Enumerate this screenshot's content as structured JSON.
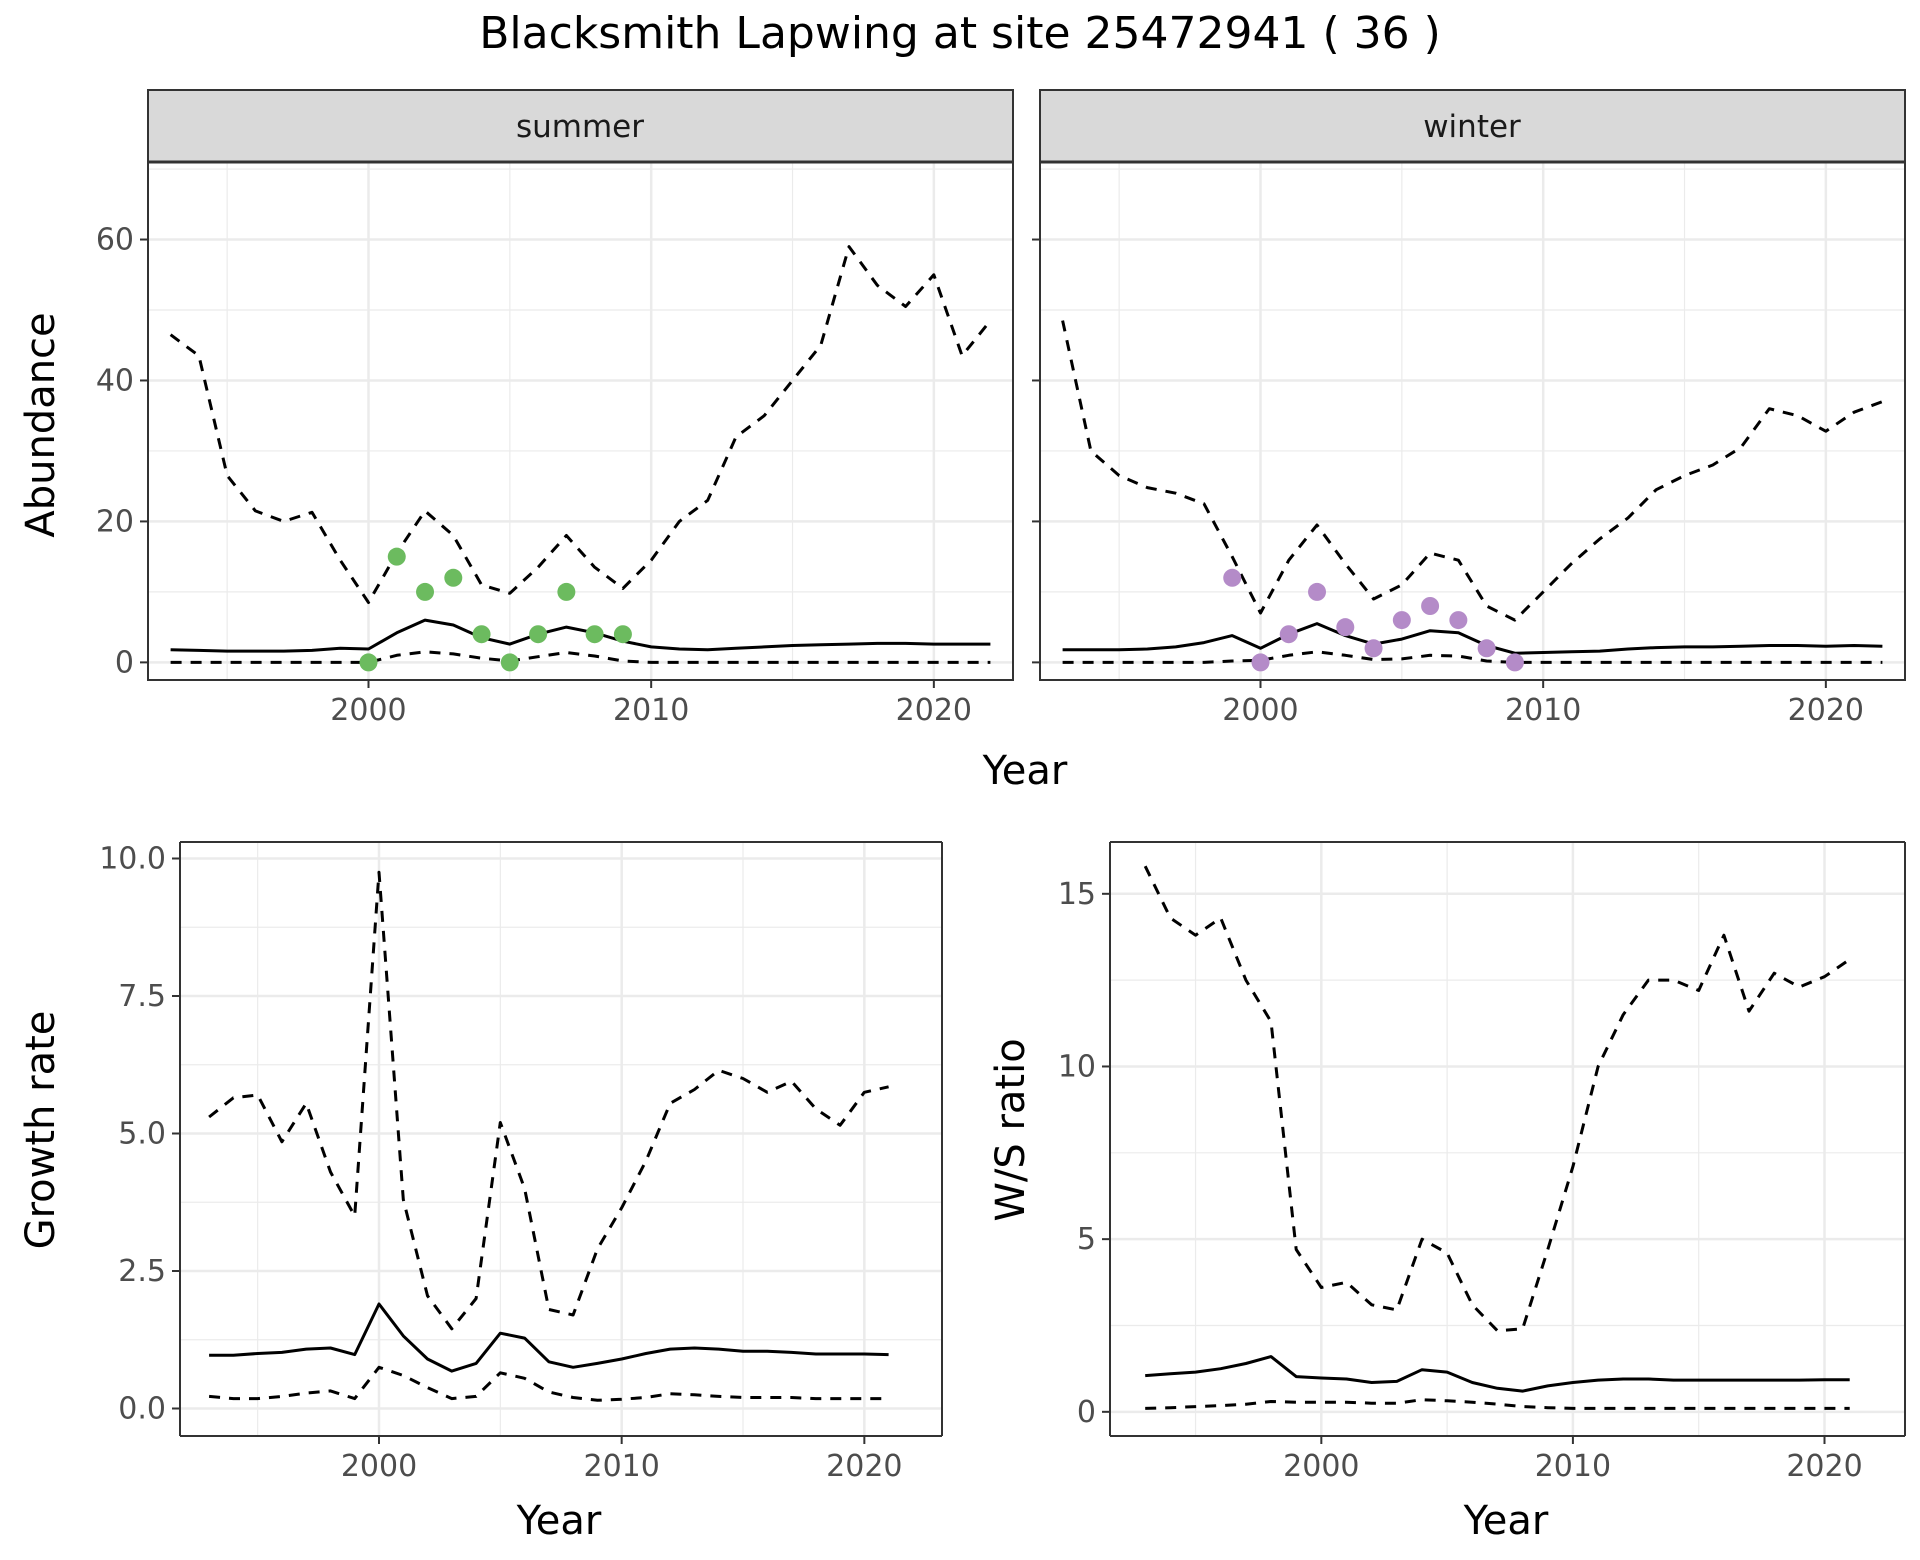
{
  "title": "Blacksmith Lapwing at site 25472941 ( 36 )",
  "colors": {
    "summer_points": "#6cbb5f",
    "winter_points": "#b48bc8",
    "strip_fill": "#d9d9d9",
    "strip_border": "#333333",
    "grid": "#ebebeb",
    "line": "#000000"
  },
  "chart_data": [
    {
      "type": "line",
      "facet": "summer",
      "strip_label": "summer",
      "xlabel": "Year",
      "ylabel": "Abundance",
      "xlim": [
        1992.2,
        2022.8
      ],
      "ylim": [
        -2.5,
        71
      ],
      "x_ticks": [
        2000,
        2010,
        2020
      ],
      "y_ticks": [
        0,
        20,
        40,
        60
      ],
      "grid": true,
      "series": [
        {
          "role": "mean",
          "style": "solid",
          "x": [
            1993,
            1994,
            1995,
            1996,
            1997,
            1998,
            1999,
            2000,
            2001,
            2002,
            2003,
            2004,
            2005,
            2006,
            2007,
            2008,
            2009,
            2010,
            2011,
            2012,
            2013,
            2014,
            2015,
            2016,
            2017,
            2018,
            2019,
            2020,
            2021,
            2022
          ],
          "y": [
            1.8,
            1.7,
            1.6,
            1.6,
            1.6,
            1.7,
            2.0,
            1.9,
            4.2,
            6.0,
            5.3,
            3.5,
            2.6,
            4.0,
            5.0,
            4.2,
            3.0,
            2.2,
            1.9,
            1.8,
            2.0,
            2.2,
            2.4,
            2.5,
            2.6,
            2.7,
            2.7,
            2.6,
            2.6,
            2.6
          ]
        },
        {
          "role": "upper",
          "style": "dashed",
          "x": [
            1993,
            1994,
            1995,
            1996,
            1997,
            1998,
            1999,
            2000,
            2001,
            2002,
            2003,
            2004,
            2005,
            2006,
            2007,
            2008,
            2009,
            2010,
            2011,
            2012,
            2013,
            2014,
            2015,
            2016,
            2017,
            2018,
            2019,
            2020,
            2021,
            2022
          ],
          "y": [
            46.5,
            43.5,
            26.5,
            21.5,
            20.0,
            21.3,
            14.5,
            8.5,
            15.5,
            21.5,
            18.0,
            11.0,
            9.8,
            13.5,
            18.0,
            13.5,
            10.5,
            14.5,
            20.0,
            23.0,
            32.0,
            35.0,
            40.0,
            45.0,
            59.0,
            53.5,
            50.5,
            55.0,
            43.5,
            48.5
          ]
        },
        {
          "role": "lower",
          "style": "dashed",
          "x": [
            1993,
            1994,
            1995,
            1996,
            1997,
            1998,
            1999,
            2000,
            2001,
            2002,
            2003,
            2004,
            2005,
            2006,
            2007,
            2008,
            2009,
            2010,
            2011,
            2012,
            2013,
            2014,
            2015,
            2016,
            2017,
            2018,
            2019,
            2020,
            2021,
            2022
          ],
          "y": [
            0,
            0,
            0,
            0,
            0,
            0,
            0,
            0,
            1.0,
            1.5,
            1.2,
            0.6,
            0.2,
            0.8,
            1.4,
            0.9,
            0.2,
            0,
            0,
            0,
            0,
            0,
            0,
            0,
            0,
            0,
            0,
            0,
            0,
            0
          ]
        },
        {
          "role": "observed",
          "style": "points",
          "x": [
            2000,
            2001,
            2002,
            2003,
            2004,
            2005,
            2006,
            2007,
            2008,
            2009
          ],
          "y": [
            0,
            15,
            10,
            12,
            4,
            0,
            4,
            10,
            4,
            4
          ]
        }
      ]
    },
    {
      "type": "line",
      "facet": "winter",
      "strip_label": "winter",
      "xlabel": "Year",
      "ylabel": "",
      "xlim": [
        1992.2,
        2022.8
      ],
      "ylim": [
        -2.5,
        71
      ],
      "x_ticks": [
        2000,
        2010,
        2020
      ],
      "y_ticks": [
        0,
        20,
        40,
        60
      ],
      "grid": true,
      "series": [
        {
          "role": "mean",
          "style": "solid",
          "x": [
            1993,
            1994,
            1995,
            1996,
            1997,
            1998,
            1999,
            2000,
            2001,
            2002,
            2003,
            2004,
            2005,
            2006,
            2007,
            2008,
            2009,
            2010,
            2011,
            2012,
            2013,
            2014,
            2015,
            2016,
            2017,
            2018,
            2019,
            2020,
            2021,
            2022
          ],
          "y": [
            1.8,
            1.8,
            1.8,
            1.9,
            2.2,
            2.8,
            3.8,
            2.0,
            4.0,
            5.5,
            3.8,
            2.6,
            3.3,
            4.5,
            4.2,
            2.4,
            1.3,
            1.4,
            1.5,
            1.6,
            1.9,
            2.1,
            2.2,
            2.2,
            2.3,
            2.4,
            2.4,
            2.3,
            2.4,
            2.3
          ]
        },
        {
          "role": "upper",
          "style": "dashed",
          "x": [
            1993,
            1994,
            1995,
            1996,
            1997,
            1998,
            1999,
            2000,
            2001,
            2002,
            2003,
            2004,
            2005,
            2006,
            2007,
            2008,
            2009,
            2010,
            2011,
            2012,
            2013,
            2014,
            2015,
            2016,
            2017,
            2018,
            2019,
            2020,
            2021,
            2022
          ],
          "y": [
            48.5,
            30.0,
            26.5,
            24.8,
            24.0,
            22.5,
            15.0,
            7.0,
            14.5,
            19.5,
            14.0,
            9.0,
            11.0,
            15.5,
            14.5,
            8.0,
            6.0,
            10.0,
            14.0,
            17.5,
            20.5,
            24.5,
            26.5,
            28.0,
            30.5,
            36.0,
            35.0,
            32.8,
            35.5,
            37.0
          ]
        },
        {
          "role": "lower",
          "style": "dashed",
          "x": [
            1993,
            1994,
            1995,
            1996,
            1997,
            1998,
            1999,
            2000,
            2001,
            2002,
            2003,
            2004,
            2005,
            2006,
            2007,
            2008,
            2009,
            2010,
            2011,
            2012,
            2013,
            2014,
            2015,
            2016,
            2017,
            2018,
            2019,
            2020,
            2021,
            2022
          ],
          "y": [
            0,
            0,
            0,
            0,
            0,
            0,
            0.2,
            0.3,
            1.0,
            1.5,
            1.0,
            0.4,
            0.5,
            1.0,
            0.9,
            0.2,
            0,
            0,
            0,
            0,
            0,
            0,
            0,
            0,
            0,
            0,
            0,
            0,
            0,
            0
          ]
        },
        {
          "role": "observed",
          "style": "points",
          "x": [
            1999,
            2000,
            2001,
            2002,
            2003,
            2004,
            2005,
            2006,
            2007,
            2008,
            2009
          ],
          "y": [
            12,
            0,
            4,
            10,
            5,
            2,
            6,
            8,
            6,
            2,
            0
          ]
        }
      ]
    },
    {
      "type": "line",
      "xlabel": "Year",
      "ylabel": "Growth rate",
      "xlim": [
        1991.8,
        2023.2
      ],
      "ylim": [
        -0.5,
        10.3
      ],
      "x_ticks": [
        2000,
        2010,
        2020
      ],
      "y_ticks": [
        0,
        2.5,
        5,
        7.5,
        10
      ],
      "y_tick_labels": [
        "0.0",
        "2.5",
        "5.0",
        "7.5",
        "10.0"
      ],
      "grid": true,
      "series": [
        {
          "role": "mean",
          "style": "solid",
          "x": [
            1993,
            1994,
            1995,
            1996,
            1997,
            1998,
            1999,
            2000,
            2001,
            2002,
            2003,
            2004,
            2005,
            2006,
            2007,
            2008,
            2009,
            2010,
            2011,
            2012,
            2013,
            2014,
            2015,
            2016,
            2017,
            2018,
            2019,
            2020,
            2021
          ],
          "y": [
            0.97,
            0.97,
            1.0,
            1.02,
            1.08,
            1.1,
            0.98,
            1.9,
            1.32,
            0.9,
            0.68,
            0.82,
            1.37,
            1.28,
            0.85,
            0.75,
            0.82,
            0.9,
            1.0,
            1.08,
            1.1,
            1.08,
            1.04,
            1.04,
            1.02,
            0.99,
            0.99,
            0.99,
            0.98
          ]
        },
        {
          "role": "upper",
          "style": "dashed",
          "x": [
            1993,
            1994,
            1995,
            1996,
            1997,
            1998,
            1999,
            2000,
            2001,
            2002,
            2003,
            2004,
            2005,
            2006,
            2007,
            2008,
            2009,
            2010,
            2011,
            2012,
            2013,
            2014,
            2015,
            2016,
            2017,
            2018,
            2019,
            2020,
            2021
          ],
          "y": [
            5.3,
            5.65,
            5.7,
            4.85,
            5.55,
            4.3,
            3.5,
            9.75,
            3.8,
            2.05,
            1.45,
            2.0,
            5.2,
            4.0,
            1.8,
            1.7,
            2.9,
            3.65,
            4.5,
            5.55,
            5.8,
            6.15,
            6.0,
            5.75,
            5.95,
            5.45,
            5.15,
            5.75,
            5.85
          ]
        },
        {
          "role": "lower",
          "style": "dashed",
          "x": [
            1993,
            1994,
            1995,
            1996,
            1997,
            1998,
            1999,
            2000,
            2001,
            2002,
            2003,
            2004,
            2005,
            2006,
            2007,
            2008,
            2009,
            2010,
            2011,
            2012,
            2013,
            2014,
            2015,
            2016,
            2017,
            2018,
            2019,
            2020,
            2021
          ],
          "y": [
            0.22,
            0.18,
            0.18,
            0.22,
            0.28,
            0.32,
            0.18,
            0.75,
            0.6,
            0.38,
            0.18,
            0.22,
            0.65,
            0.55,
            0.3,
            0.2,
            0.15,
            0.17,
            0.2,
            0.27,
            0.25,
            0.22,
            0.2,
            0.2,
            0.2,
            0.18,
            0.18,
            0.18,
            0.18
          ]
        }
      ]
    },
    {
      "type": "line",
      "xlabel": "Year",
      "ylabel": "W/S ratio",
      "xlim": [
        1991.6,
        2023.2
      ],
      "ylim": [
        -0.7,
        16.5
      ],
      "x_ticks": [
        2000,
        2010,
        2020
      ],
      "y_ticks": [
        0,
        5,
        10,
        15
      ],
      "grid": true,
      "series": [
        {
          "role": "mean",
          "style": "solid",
          "x": [
            1993,
            1994,
            1995,
            1996,
            1997,
            1998,
            1999,
            2000,
            2001,
            2002,
            2003,
            2004,
            2005,
            2006,
            2007,
            2008,
            2009,
            2010,
            2011,
            2012,
            2013,
            2014,
            2015,
            2016,
            2017,
            2018,
            2019,
            2020,
            2021
          ],
          "y": [
            1.05,
            1.1,
            1.15,
            1.25,
            1.4,
            1.6,
            1.02,
            0.98,
            0.95,
            0.85,
            0.88,
            1.22,
            1.15,
            0.85,
            0.68,
            0.6,
            0.75,
            0.85,
            0.92,
            0.95,
            0.95,
            0.92,
            0.92,
            0.92,
            0.92,
            0.92,
            0.92,
            0.93,
            0.93
          ]
        },
        {
          "role": "upper",
          "style": "dashed",
          "x": [
            1993,
            1994,
            1995,
            1996,
            1997,
            1998,
            1999,
            2000,
            2001,
            2002,
            2003,
            2004,
            2005,
            2006,
            2007,
            2008,
            2009,
            2010,
            2011,
            2012,
            2013,
            2014,
            2015,
            2016,
            2017,
            2018,
            2019,
            2020,
            2021
          ],
          "y": [
            15.8,
            14.3,
            13.8,
            14.3,
            12.5,
            11.3,
            4.7,
            3.6,
            3.75,
            3.1,
            2.95,
            5.0,
            4.6,
            3.1,
            2.35,
            2.4,
            4.7,
            7.1,
            10.0,
            11.5,
            12.5,
            12.5,
            12.2,
            13.8,
            11.6,
            12.7,
            12.3,
            12.6,
            13.1
          ]
        },
        {
          "role": "lower",
          "style": "dashed",
          "x": [
            1993,
            1994,
            1995,
            1996,
            1997,
            1998,
            1999,
            2000,
            2001,
            2002,
            2003,
            2004,
            2005,
            2006,
            2007,
            2008,
            2009,
            2010,
            2011,
            2012,
            2013,
            2014,
            2015,
            2016,
            2017,
            2018,
            2019,
            2020,
            2021
          ],
          "y": [
            0.1,
            0.12,
            0.15,
            0.18,
            0.22,
            0.3,
            0.28,
            0.28,
            0.28,
            0.25,
            0.25,
            0.35,
            0.32,
            0.28,
            0.22,
            0.15,
            0.12,
            0.1,
            0.1,
            0.1,
            0.1,
            0.1,
            0.1,
            0.1,
            0.1,
            0.1,
            0.1,
            0.1,
            0.1
          ]
        }
      ]
    }
  ]
}
